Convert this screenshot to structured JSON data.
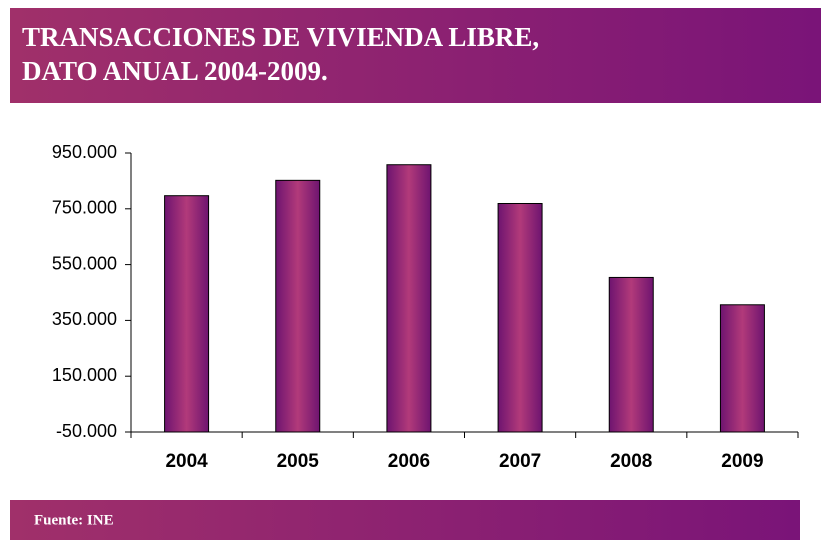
{
  "chart_data": {
    "type": "bar",
    "title": [
      "TRANSACCIONES DE VIVIENDA LIBRE,",
      "DATO ANUAL 2004-2009."
    ],
    "categories": [
      "2004",
      "2005",
      "2006",
      "2007",
      "2008",
      "2009"
    ],
    "values": [
      797000,
      852000,
      908000,
      769000,
      504000,
      406000
    ],
    "color": "#8e1e72",
    "ylim": [
      -50000,
      950000
    ],
    "yticks": [
      {
        "value": -50000,
        "label": "-50.000"
      },
      {
        "value": 150000,
        "label": "150.000"
      },
      {
        "value": 350000,
        "label": "350.000"
      },
      {
        "value": 550000,
        "label": "550.000"
      },
      {
        "value": 750000,
        "label": "750.000"
      },
      {
        "value": 950000,
        "label": "950.000"
      }
    ],
    "grid": false,
    "source": "Fuente:  INE"
  }
}
